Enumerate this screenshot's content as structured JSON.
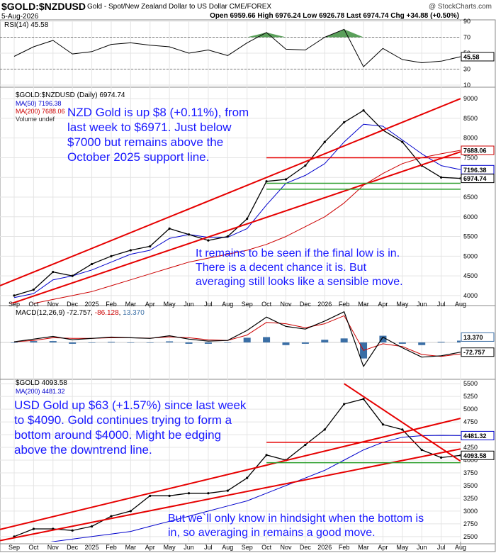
{
  "header": {
    "symbol": "$GOLD:$NZDUSD",
    "description": "Gold - Spot/New Zealand Dollar to US Dollar  CME/FOREX",
    "watermark": "@ StockCharts.com",
    "date": "5-Aug-2026",
    "ohlc": "Open 6959.66  High 6976.24  Low 6926.78  Last 6974.74  Chg +34.88 (+0.50%)"
  },
  "colors": {
    "price": "#000000",
    "ma50": "#0000cc",
    "ma200": "#cc0000",
    "trend": "#e60000",
    "support": "#2a9d2a",
    "macd_hist": "#3a6ea5",
    "rsi_fill": "#3d8f3d",
    "annotation": "#1a1aff"
  },
  "x_axis_labels": [
    "Sep",
    "Oct",
    "Nov",
    "Dec",
    "2025",
    "Feb",
    "Mar",
    "Apr",
    "May",
    "Jun",
    "Jul",
    "Aug",
    "Sep",
    "Oct",
    "Nov",
    "Dec",
    "2026",
    "Feb",
    "Mar",
    "Apr",
    "May",
    "Jun",
    "Jul",
    "Aug"
  ],
  "rsi_panel": {
    "legend": "RSI(14) 45.58",
    "value_tag": "45.58"
  },
  "nzd_panel": {
    "legend_main": "$GOLD:$NZDUSD (Daily) 6974.74",
    "legend_ma50": "MA(50) 7196.38",
    "legend_ma200": "MA(200) 7688.06",
    "legend_volume": "Volume undef",
    "tag_ma200": "7688.06",
    "tag_ma50": "7196.38",
    "tag_last": "6974.74",
    "annotation_1": "NZD Gold is up $8 (+0.11%), from\nlast week to $6971. Just below\n$7000 but remains above the\nOctober 2025 support line.",
    "annotation_2": "It remains to be seen if the final low is in.\nThere is a decent chance it is. But\naveraging still looks like a sensible move."
  },
  "macd_panel": {
    "legend_prefix": "MACD(12,26,9)",
    "legend_macd": "-72.757",
    "legend_signal": "-86.128",
    "legend_hist": "13.370",
    "tag_hist": "13.370",
    "tag_macd": "-72.757"
  },
  "usd_panel": {
    "legend_main": "$GOLD 4093.58",
    "legend_ma200": "MA(200) 4481.32",
    "tag_ma200": "4481.32",
    "tag_last": "4093.58",
    "annotation_1": "USD Gold up $63 (+1.57%) since last week\nto $4090. Gold continues trying to form a\nbottom around $4000. Might be edging\nabove the downtrend line.",
    "annotation_2": "But we`ll only know in hindsight when the bottom is\nin, so averaging in remains a good move."
  },
  "chart_data": [
    {
      "type": "line",
      "title": "RSI(14) 45.58",
      "x": [
        "Sep",
        "Oct",
        "Nov",
        "Dec",
        "2025",
        "Feb",
        "Mar",
        "Apr",
        "May",
        "Jun",
        "Jul",
        "Aug",
        "Sep",
        "Oct",
        "Nov",
        "Dec",
        "2026",
        "Feb",
        "Mar",
        "Apr",
        "May",
        "Jun",
        "Jul",
        "Aug"
      ],
      "series": [
        {
          "name": "RSI(14)",
          "values": [
            46,
            58,
            66,
            49,
            52,
            61,
            63,
            60,
            58,
            50,
            54,
            47,
            63,
            76,
            55,
            54,
            70,
            80,
            33,
            56,
            42,
            38,
            40,
            45.58
          ]
        }
      ],
      "ylim": [
        10,
        90
      ],
      "yticks": [
        10,
        30,
        50,
        70,
        90
      ],
      "reference_lines": [
        30,
        70
      ]
    },
    {
      "type": "line",
      "title": "$GOLD:$NZDUSD (Daily) 6974.74",
      "x": [
        "Sep",
        "Oct",
        "Nov",
        "Dec",
        "2025",
        "Feb",
        "Mar",
        "Apr",
        "May",
        "Jun",
        "Jul",
        "Aug",
        "Sep",
        "Oct",
        "Nov",
        "Dec",
        "2026",
        "Feb",
        "Mar",
        "Apr",
        "May",
        "Jun",
        "Jul",
        "Aug"
      ],
      "series": [
        {
          "name": "$GOLD:$NZDUSD",
          "values": [
            4000,
            4150,
            4600,
            4500,
            4800,
            5000,
            5150,
            5250,
            5700,
            5550,
            5400,
            5500,
            5950,
            6900,
            6950,
            7300,
            7900,
            8400,
            8700,
            8200,
            7900,
            7300,
            7000,
            6974.74
          ]
        },
        {
          "name": "MA(50)",
          "values": [
            3950,
            4050,
            4400,
            4500,
            4650,
            4850,
            5050,
            5150,
            5450,
            5550,
            5480,
            5480,
            5700,
            6300,
            6850,
            7050,
            7350,
            7900,
            8350,
            8300,
            7950,
            7600,
            7300,
            7196.38
          ]
        },
        {
          "name": "MA(200)",
          "values": [
            3700,
            3800,
            3900,
            4000,
            4100,
            4250,
            4400,
            4550,
            4700,
            4850,
            4950,
            5050,
            5150,
            5300,
            5500,
            5750,
            6000,
            6350,
            6800,
            7100,
            7350,
            7500,
            7600,
            7688.06
          ]
        }
      ],
      "ylim": [
        3800,
        9200
      ],
      "yticks": [
        4000,
        4500,
        5000,
        5500,
        6000,
        6500,
        7000,
        7500,
        8000,
        8500,
        9000
      ],
      "horizontal_lines": [
        7500,
        6850,
        6700
      ]
    },
    {
      "type": "line",
      "title": "MACD(12,26,9) -72.757, -86.128, 13.370",
      "x": [
        "Sep",
        "Oct",
        "Nov",
        "Dec",
        "2025",
        "Feb",
        "Mar",
        "Apr",
        "May",
        "Jun",
        "Jul",
        "Aug",
        "Sep",
        "Oct",
        "Nov",
        "Dec",
        "2026",
        "Feb",
        "Mar",
        "Apr",
        "May",
        "Jun",
        "Jul",
        "Aug"
      ],
      "series": [
        {
          "name": "MACD",
          "values": [
            5,
            25,
            45,
            20,
            30,
            40,
            35,
            30,
            50,
            25,
            10,
            15,
            90,
            190,
            120,
            100,
            160,
            230,
            -180,
            40,
            -40,
            -110,
            -100,
            -72.757
          ]
        },
        {
          "name": "Signal",
          "values": [
            5,
            15,
            35,
            30,
            30,
            35,
            35,
            32,
            42,
            35,
            20,
            15,
            55,
            150,
            140,
            110,
            140,
            200,
            -60,
            -10,
            -30,
            -90,
            -105,
            -86.128
          ]
        },
        {
          "name": "Histogram",
          "values": [
            0,
            10,
            10,
            -10,
            0,
            5,
            0,
            -2,
            8,
            -10,
            -10,
            0,
            35,
            40,
            -20,
            -10,
            20,
            30,
            -120,
            50,
            -10,
            -20,
            5,
            13.37
          ]
        }
      ]
    },
    {
      "type": "line",
      "title": "$GOLD 4093.58",
      "x": [
        "Sep",
        "Oct",
        "Nov",
        "Dec",
        "2025",
        "Feb",
        "Mar",
        "Apr",
        "May",
        "Jun",
        "Jul",
        "Aug",
        "Sep",
        "Oct",
        "Nov",
        "Dec",
        "2026",
        "Feb",
        "Mar",
        "Apr",
        "May",
        "Jun",
        "Jul",
        "Aug"
      ],
      "series": [
        {
          "name": "$GOLD",
          "values": [
            2500,
            2650,
            2650,
            2620,
            2700,
            2900,
            3000,
            3300,
            3300,
            3350,
            3350,
            3400,
            3650,
            4100,
            4000,
            4300,
            4600,
            5100,
            5200,
            4700,
            4600,
            4200,
            4050,
            4093.58
          ]
        },
        {
          "name": "MA(200)",
          "values": [
            2300,
            2350,
            2400,
            2450,
            2500,
            2550,
            2600,
            2700,
            2800,
            2900,
            3000,
            3100,
            3200,
            3350,
            3500,
            3650,
            3800,
            4000,
            4200,
            4350,
            4450,
            4480,
            4485,
            4481.32
          ]
        }
      ],
      "ylim": [
        2400,
        5600
      ],
      "yticks": [
        2500,
        2750,
        3000,
        3250,
        3500,
        3750,
        4000,
        4250,
        4500,
        4750,
        5000,
        5250,
        5500
      ],
      "horizontal_lines": [
        4350,
        3950
      ]
    }
  ]
}
